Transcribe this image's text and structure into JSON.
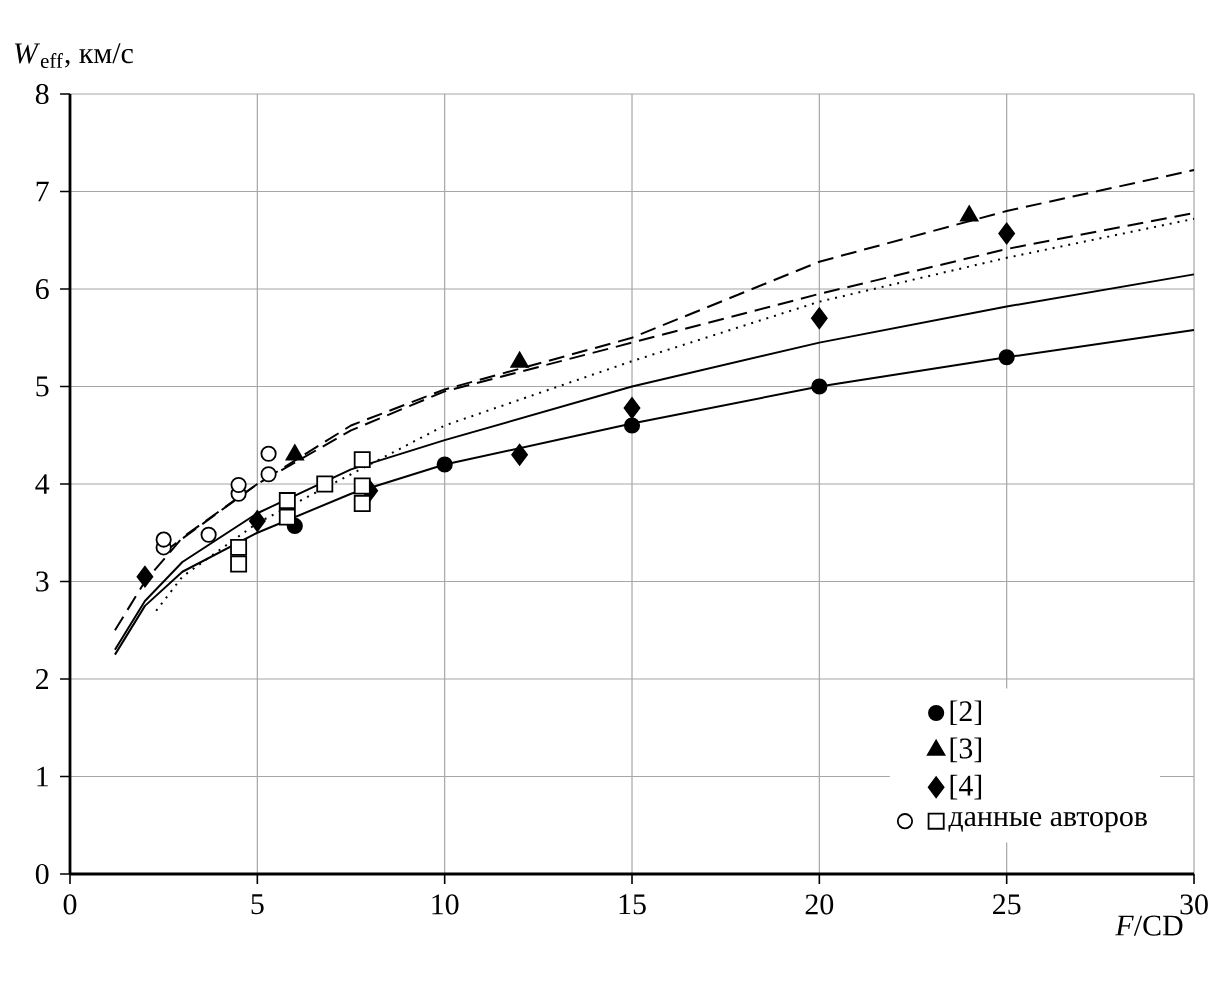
{
  "chart_data": {
    "type": "scatter",
    "xlabel": "*F*/CD",
    "ylabel": "*W*$_{eff}$, км/с",
    "xlim": [
      0,
      30
    ],
    "ylim": [
      0,
      8
    ],
    "xticks": [
      0,
      5,
      10,
      15,
      20,
      25,
      30
    ],
    "yticks": [
      0,
      1,
      2,
      3,
      4,
      5,
      6,
      7,
      8
    ],
    "grid": true,
    "legend": "bottom right",
    "series": [
      {
        "type": "line",
        "marker": "none",
        "line_style": "solid",
        "color": "#000000",
        "x": [
          1.2,
          2,
          3,
          5,
          7.5,
          10,
          15,
          20,
          25,
          30
        ],
        "values": [
          2.25,
          2.75,
          3.1,
          3.5,
          3.9,
          4.2,
          4.62,
          5.0,
          5.3,
          5.58
        ]
      },
      {
        "type": "line",
        "marker": "none",
        "line_style": "solid",
        "color": "#000000",
        "x": [
          1.2,
          2,
          3,
          5,
          7.5,
          10,
          15,
          20,
          25,
          30
        ],
        "values": [
          2.3,
          2.8,
          3.2,
          3.7,
          4.15,
          4.45,
          5.0,
          5.45,
          5.82,
          6.15
        ]
      },
      {
        "type": "line",
        "marker": "none",
        "line_style": "dotted",
        "color": "#000000",
        "x": [
          2.3,
          3,
          5,
          7.5,
          10,
          15,
          20,
          25,
          30
        ],
        "values": [
          2.7,
          3.05,
          3.6,
          4.1,
          4.6,
          5.26,
          5.87,
          6.32,
          6.72
        ]
      },
      {
        "type": "line",
        "marker": "none",
        "line_style": "dashed",
        "color": "#000000",
        "x": [
          1.2,
          2,
          3,
          5,
          7.5,
          10,
          15,
          20,
          25,
          30
        ],
        "values": [
          2.5,
          3.0,
          3.45,
          4.0,
          4.6,
          4.97,
          5.5,
          6.28,
          6.8,
          7.22
        ]
      },
      {
        "type": "line",
        "marker": "none",
        "line_style": "dashed",
        "color": "#000000",
        "x": [
          2.5,
          5,
          7.5,
          10,
          15,
          20,
          25,
          30
        ],
        "values": [
          3.3,
          4.0,
          4.55,
          4.95,
          5.45,
          5.95,
          6.41,
          6.78
        ]
      },
      {
        "marker": "circle",
        "color": "#ffffff",
        "x": [
          2.5,
          2.5,
          3.7,
          4.5,
          4.5,
          5.3,
          5.3
        ],
        "values": [
          3.35,
          3.43,
          3.48,
          3.9,
          3.99,
          4.1,
          4.31
        ]
      },
      {
        "name": "[2]",
        "marker": "circle",
        "color": "#000000",
        "x": [
          6,
          10,
          15,
          20,
          25
        ],
        "values": [
          3.57,
          4.2,
          4.6,
          5.0,
          5.3
        ]
      },
      {
        "name": "[3]",
        "marker": "triangle",
        "color": "#000000",
        "x": [
          6,
          12,
          24
        ],
        "values": [
          4.3,
          5.25,
          6.75
        ]
      },
      {
        "name": "[4]",
        "marker": "diamond",
        "color": "#000000",
        "x": [
          2,
          5,
          8,
          12,
          15,
          20,
          25
        ],
        "values": [
          3.05,
          3.62,
          3.93,
          4.3,
          4.78,
          5.7,
          6.57
        ]
      },
      {
        "name": "данные авторов",
        "marker": "square",
        "color": "#ffffff",
        "x": [
          4.5,
          4.5,
          5.8,
          5.8,
          6.8,
          7.8,
          7.8,
          7.8
        ],
        "values": [
          3.18,
          3.35,
          3.66,
          3.83,
          4.0,
          3.8,
          3.98,
          4.25
        ]
      }
    ]
  }
}
